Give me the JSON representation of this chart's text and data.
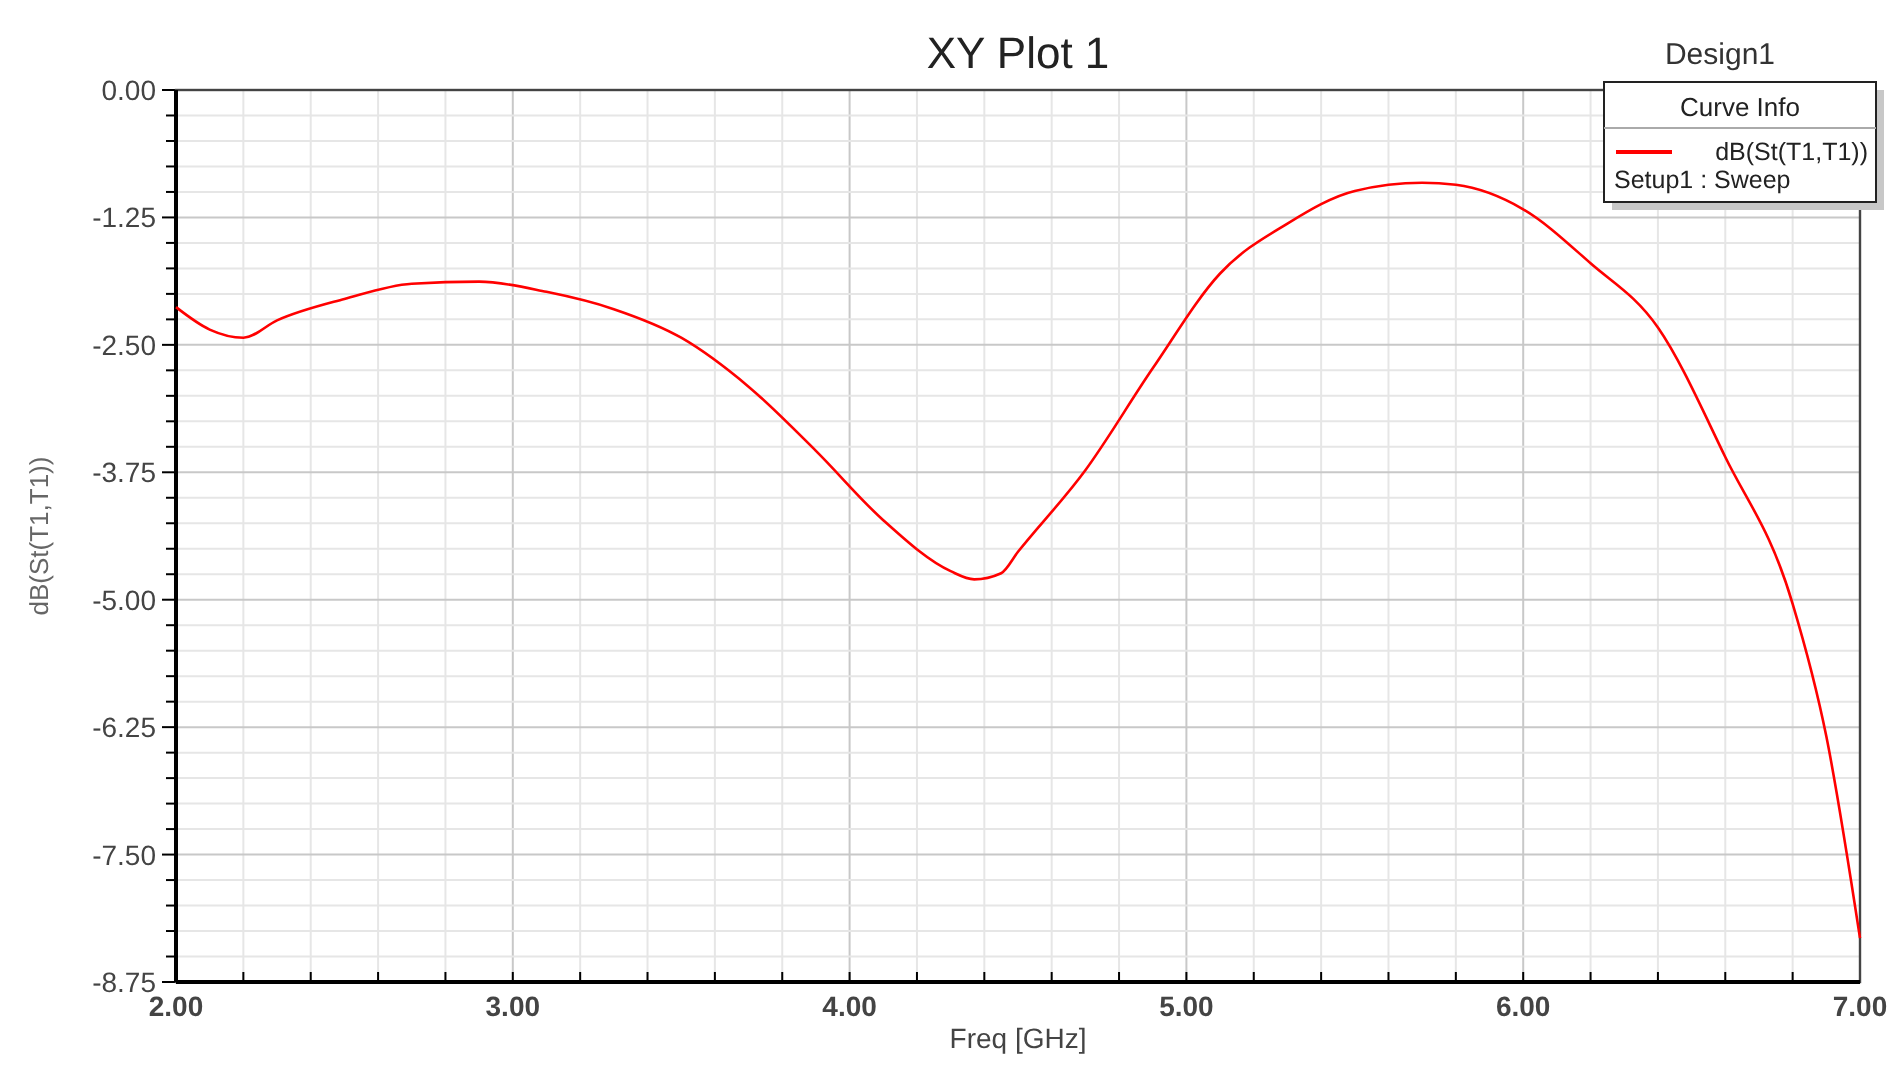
{
  "chart_data": {
    "type": "line",
    "title": "XY Plot 1",
    "subtitle": "Design1",
    "xlabel": "Freq [GHz]",
    "ylabel": "dB(St(T1,T1))",
    "legend_title": "Curve Info",
    "annotations": [
      "Setup1 : Sweep"
    ],
    "x": [
      2.0,
      2.1,
      2.2,
      2.3,
      2.5,
      2.7,
      2.9,
      3.1,
      3.3,
      3.5,
      3.7,
      3.9,
      4.1,
      4.3,
      4.37,
      4.45,
      4.5,
      4.7,
      4.9,
      5.1,
      5.3,
      5.5,
      5.7,
      5.8,
      6.0,
      6.2,
      6.4,
      6.6,
      6.8,
      6.9,
      7.0
    ],
    "series": [
      {
        "name": "dB(St(T1,T1))",
        "color": "#ff0000",
        "values": [
          -2.13,
          -2.35,
          -2.43,
          -2.26,
          -2.05,
          -1.9,
          -1.88,
          -1.98,
          -2.15,
          -2.43,
          -2.91,
          -3.54,
          -4.22,
          -4.72,
          -4.8,
          -4.74,
          -4.53,
          -3.73,
          -2.73,
          -1.8,
          -1.31,
          -0.99,
          -0.91,
          -0.93,
          -1.17,
          -1.7,
          -2.33,
          -3.6,
          -5.04,
          -6.34,
          -8.32
        ]
      }
    ],
    "xlim": [
      2,
      7
    ],
    "ylim": [
      -8.75,
      0
    ],
    "xticks": [
      {
        "value": 2,
        "label": "2.00"
      },
      {
        "value": 2.2,
        "label": null
      },
      {
        "value": 2.4,
        "label": null
      },
      {
        "value": 2.6,
        "label": null
      },
      {
        "value": 2.8,
        "label": null
      },
      {
        "value": 3,
        "label": "3.00"
      },
      {
        "value": 3.2,
        "label": null
      },
      {
        "value": 3.4,
        "label": null
      },
      {
        "value": 3.6,
        "label": null
      },
      {
        "value": 3.8,
        "label": null
      },
      {
        "value": 4,
        "label": "4.00"
      },
      {
        "value": 4.2,
        "label": null
      },
      {
        "value": 4.4,
        "label": null
      },
      {
        "value": 4.6,
        "label": null
      },
      {
        "value": 4.8,
        "label": null
      },
      {
        "value": 5,
        "label": "5.00"
      },
      {
        "value": 5.2,
        "label": null
      },
      {
        "value": 5.4,
        "label": null
      },
      {
        "value": 5.6,
        "label": null
      },
      {
        "value": 5.8,
        "label": null
      },
      {
        "value": 6,
        "label": "6.00"
      },
      {
        "value": 6.2,
        "label": null
      },
      {
        "value": 6.4,
        "label": null
      },
      {
        "value": 6.6,
        "label": null
      },
      {
        "value": 6.8,
        "label": null
      },
      {
        "value": 7,
        "label": "7.00"
      }
    ],
    "yticks": [
      {
        "value": 0,
        "label": "0.00"
      },
      {
        "value": -0.25,
        "label": null
      },
      {
        "value": -0.5,
        "label": null
      },
      {
        "value": -0.75,
        "label": null
      },
      {
        "value": -1,
        "label": null
      },
      {
        "value": -1.25,
        "label": "-1.25"
      },
      {
        "value": -1.5,
        "label": null
      },
      {
        "value": -1.75,
        "label": null
      },
      {
        "value": -2,
        "label": null
      },
      {
        "value": -2.25,
        "label": null
      },
      {
        "value": -2.5,
        "label": "-2.50"
      },
      {
        "value": -2.75,
        "label": null
      },
      {
        "value": -3,
        "label": null
      },
      {
        "value": -3.25,
        "label": null
      },
      {
        "value": -3.5,
        "label": null
      },
      {
        "value": -3.75,
        "label": "-3.75"
      },
      {
        "value": -4,
        "label": null
      },
      {
        "value": -4.25,
        "label": null
      },
      {
        "value": -4.5,
        "label": null
      },
      {
        "value": -4.75,
        "label": null
      },
      {
        "value": -5,
        "label": "-5.00"
      },
      {
        "value": -5.25,
        "label": null
      },
      {
        "value": -5.5,
        "label": null
      },
      {
        "value": -5.75,
        "label": null
      },
      {
        "value": -6,
        "label": null
      },
      {
        "value": -6.25,
        "label": "-6.25"
      },
      {
        "value": -6.5,
        "label": null
      },
      {
        "value": -6.75,
        "label": null
      },
      {
        "value": -7,
        "label": null
      },
      {
        "value": -7.25,
        "label": null
      },
      {
        "value": -7.5,
        "label": "-7.50"
      },
      {
        "value": -7.75,
        "label": null
      },
      {
        "value": -8,
        "label": null
      },
      {
        "value": -8.25,
        "label": null
      },
      {
        "value": -8.5,
        "label": null
      },
      {
        "value": -8.75,
        "label": "-8.75"
      }
    ],
    "grid": true,
    "legend": "top right",
    "marker": "none",
    "line_style": "solid"
  }
}
